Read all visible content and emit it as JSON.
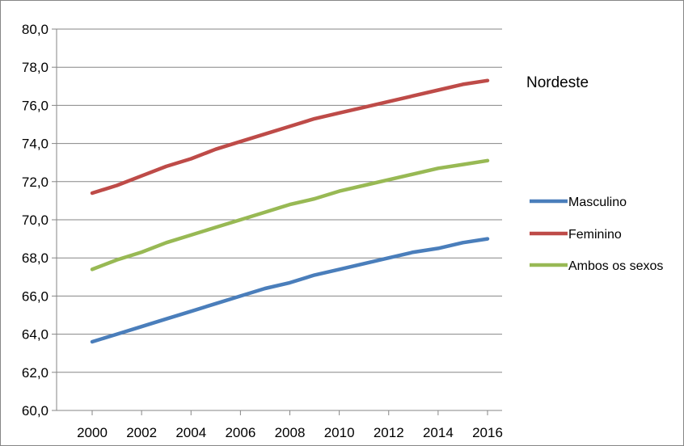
{
  "chart_data": {
    "type": "line",
    "title": "",
    "xlabel": "",
    "ylabel": "",
    "annotation": "Nordeste",
    "x": [
      2000,
      2001,
      2002,
      2003,
      2004,
      2005,
      2006,
      2007,
      2008,
      2009,
      2010,
      2011,
      2012,
      2013,
      2014,
      2015,
      2016
    ],
    "x_ticks": [
      2000,
      2002,
      2004,
      2006,
      2008,
      2010,
      2012,
      2014,
      2016
    ],
    "x_tick_labels": [
      "2000",
      "2002",
      "2004",
      "2006",
      "2008",
      "2010",
      "2012",
      "2014",
      "2016"
    ],
    "ylim": [
      60,
      80
    ],
    "y_ticks": [
      60,
      62,
      64,
      66,
      68,
      70,
      72,
      74,
      76,
      78,
      80
    ],
    "y_tick_labels": [
      "60,0",
      "62,0",
      "64,0",
      "66,0",
      "68,0",
      "70,0",
      "72,0",
      "74,0",
      "76,0",
      "78,0",
      "80,0"
    ],
    "grid": "horizontal",
    "legend_position": "right",
    "series": [
      {
        "name": "Masculino",
        "color": "#4A7EBB",
        "values": [
          63.6,
          64.0,
          64.4,
          64.8,
          65.2,
          65.6,
          66.0,
          66.4,
          66.7,
          67.1,
          67.4,
          67.7,
          68.0,
          68.3,
          68.5,
          68.8,
          69.0
        ]
      },
      {
        "name": "Feminino",
        "color": "#BE4B48",
        "values": [
          71.4,
          71.8,
          72.3,
          72.8,
          73.2,
          73.7,
          74.1,
          74.5,
          74.9,
          75.3,
          75.6,
          75.9,
          76.2,
          76.5,
          76.8,
          77.1,
          77.3
        ]
      },
      {
        "name": "Ambos os sexos",
        "color": "#98B954",
        "values": [
          67.4,
          67.9,
          68.3,
          68.8,
          69.2,
          69.6,
          70.0,
          70.4,
          70.8,
          71.1,
          71.5,
          71.8,
          72.1,
          72.4,
          72.7,
          72.9,
          73.1
        ]
      }
    ]
  }
}
